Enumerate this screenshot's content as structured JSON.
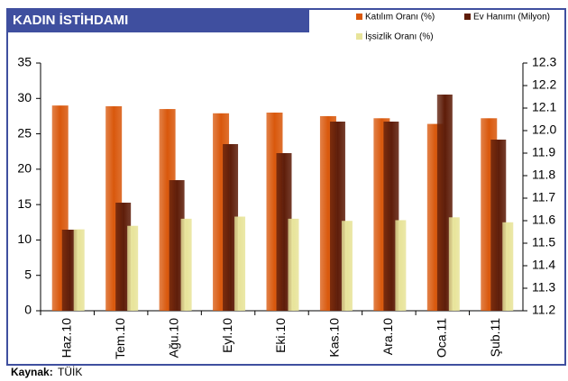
{
  "chart_data": {
    "type": "bar",
    "title": "KADIN İSTİHDAMI",
    "source_label": "Kaynak:",
    "source": "TÜİK",
    "categories": [
      "Haz.10",
      "Tem.10",
      "Ağu.10",
      "Eyl.10",
      "Eki.10",
      "Kas.10",
      "Ara.10",
      "Oca.11",
      "Şub.11"
    ],
    "series": [
      {
        "name": "Katılım Oranı (%)",
        "color": "#d9580c",
        "values": [
          29.0,
          28.9,
          28.5,
          27.9,
          28.0,
          27.5,
          27.2,
          26.4,
          27.2
        ]
      },
      {
        "name": "Ev Hanımı (Milyon)",
        "color": "#5e1c08",
        "axis": "y2",
        "values": [
          11.56,
          11.68,
          11.78,
          11.94,
          11.9,
          12.04,
          12.04,
          12.16,
          11.96
        ]
      },
      {
        "name": "İşsizlik Oranı (%)",
        "color": "#e8e49a",
        "values": [
          11.5,
          12.0,
          13.0,
          13.3,
          13.0,
          12.7,
          12.8,
          13.2,
          12.5
        ]
      }
    ],
    "ylim": [
      0,
      35
    ],
    "yticks": [
      0,
      5,
      10,
      15,
      20,
      25,
      30,
      35
    ],
    "y2lim": [
      11.2,
      12.3
    ],
    "y2ticks": [
      11.2,
      11.3,
      11.4,
      11.5,
      11.6,
      11.7,
      11.8,
      11.9,
      {
        "value": 12,
        "label": "12.0"
      },
      12.1,
      12.2,
      12.3
    ]
  }
}
